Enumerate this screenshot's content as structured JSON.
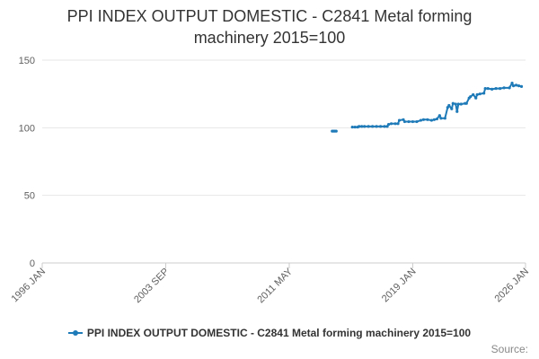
{
  "chart_data": {
    "type": "line",
    "title_line1": "PPI INDEX OUTPUT DOMESTIC - C2841 Metal forming",
    "title_line2": "machinery 2015=100",
    "ylim": [
      0,
      150
    ],
    "y_ticks": [
      0,
      50,
      100,
      150
    ],
    "xlim": [
      "1996-01",
      "2026-01"
    ],
    "x_ticks": [
      {
        "date": "1996-01",
        "label": "1996 JAN"
      },
      {
        "date": "2003-09",
        "label": "2003 SEP"
      },
      {
        "date": "2011-05",
        "label": "2011 MAY"
      },
      {
        "date": "2019-01",
        "label": "2019 JAN"
      },
      {
        "date": "2026-01",
        "label": "2026 JAN"
      }
    ],
    "legend_position": "bottom",
    "grid": "horizontal",
    "color": "#1f7ab8",
    "series": [
      {
        "name": "PPI INDEX OUTPUT DOMESTIC - C2841 Metal forming machinery 2015=100",
        "segments": [
          [
            [
              "2014-01",
              97.5
            ],
            [
              "2014-02",
              97.5
            ],
            [
              "2014-03",
              97.5
            ],
            [
              "2014-04",
              97.5
            ]
          ],
          [
            [
              "2015-04",
              100.5
            ],
            [
              "2015-06",
              100.5
            ],
            [
              "2015-08",
              100.5
            ],
            [
              "2015-09",
              101.0
            ],
            [
              "2015-11",
              101.0
            ],
            [
              "2016-01",
              101.0
            ],
            [
              "2016-04",
              101.0
            ],
            [
              "2016-07",
              101.0
            ],
            [
              "2016-10",
              101.0
            ],
            [
              "2017-01",
              101.0
            ],
            [
              "2017-04",
              101.0
            ],
            [
              "2017-06",
              101.0
            ],
            [
              "2017-07",
              102.5
            ],
            [
              "2017-09",
              103.0
            ],
            [
              "2017-12",
              103.0
            ],
            [
              "2018-02",
              103.0
            ],
            [
              "2018-03",
              105.5
            ],
            [
              "2018-06",
              106.0
            ],
            [
              "2018-07",
              104.5
            ],
            [
              "2018-10",
              104.5
            ],
            [
              "2019-01",
              104.5
            ],
            [
              "2019-04",
              104.5
            ],
            [
              "2019-07",
              105.5
            ],
            [
              "2019-09",
              106.0
            ],
            [
              "2019-12",
              106.0
            ],
            [
              "2020-03",
              105.5
            ],
            [
              "2020-05",
              106.0
            ],
            [
              "2020-07",
              106.5
            ],
            [
              "2020-09",
              109.0
            ],
            [
              "2020-10",
              107.0
            ],
            [
              "2021-01",
              107.0
            ],
            [
              "2021-03",
              115.0
            ],
            [
              "2021-04",
              116.5
            ],
            [
              "2021-06",
              114.0
            ],
            [
              "2021-07",
              118.0
            ],
            [
              "2021-09",
              117.5
            ],
            [
              "2021-10",
              112.0
            ],
            [
              "2021-11",
              117.5
            ],
            [
              "2022-01",
              117.5
            ],
            [
              "2022-04",
              118.0
            ],
            [
              "2022-05",
              118.0
            ],
            [
              "2022-07",
              122.0
            ],
            [
              "2022-08",
              123.0
            ],
            [
              "2022-10",
              124.5
            ],
            [
              "2022-12",
              122.0
            ],
            [
              "2023-01",
              124.5
            ],
            [
              "2023-03",
              125.0
            ],
            [
              "2023-06",
              125.5
            ],
            [
              "2023-07",
              129.0
            ],
            [
              "2023-09",
              129.0
            ],
            [
              "2023-12",
              128.5
            ],
            [
              "2024-03",
              129.0
            ],
            [
              "2024-06",
              129.0
            ],
            [
              "2024-09",
              129.5
            ],
            [
              "2025-01",
              129.5
            ],
            [
              "2025-03",
              133.0
            ],
            [
              "2025-04",
              131.0
            ],
            [
              "2025-06",
              131.5
            ],
            [
              "2025-08",
              131.0
            ],
            [
              "2025-10",
              130.5
            ]
          ]
        ]
      }
    ]
  },
  "legend": {
    "label": "PPI INDEX OUTPUT DOMESTIC - C2841 Metal forming machinery 2015=100"
  },
  "footer": {
    "source": "Source:"
  }
}
